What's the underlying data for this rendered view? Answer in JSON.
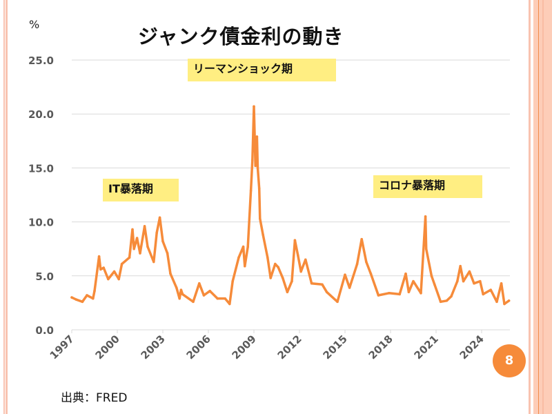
{
  "slide": {
    "title": "ジャンク債金利の動き",
    "unit_label": "%",
    "source": "出典：FRED",
    "page_number": "8",
    "annotations": {
      "it_crash": "IT暴落期",
      "lehman": "リーマンショック期",
      "corona": "コロナ暴落期"
    },
    "colors": {
      "line": "#F68B3A",
      "annotation_bg": "#FFEE82",
      "badge": "#F68B3A",
      "border": "#F9C3B0",
      "grid": "#D9D9D9",
      "tick_text": "#595959"
    }
  },
  "chart_data": {
    "type": "line",
    "title": "ジャンク債金利の動き",
    "xlabel": "",
    "ylabel": "%",
    "xlim": [
      1997,
      2025.9
    ],
    "ylim": [
      0,
      25
    ],
    "grid": true,
    "legend": "none",
    "x_ticks": [
      "1997",
      "2000",
      "2003",
      "2006",
      "2009",
      "2012",
      "2015",
      "2018",
      "2021",
      "2024"
    ],
    "y_ticks": [
      "0.0",
      "5.0",
      "10.0",
      "15.0",
      "20.0",
      "25.0"
    ],
    "annotations": [
      "IT暴落期",
      "リーマンショック期",
      "コロナ暴落期"
    ],
    "series": [
      {
        "name": "ジャンク債金利",
        "x": [
          1997.0,
          1997.3,
          1997.7,
          1998.0,
          1998.4,
          1998.5,
          1998.8,
          1998.9,
          1999.1,
          1999.4,
          1999.8,
          2000.1,
          2000.3,
          2000.8,
          2001.0,
          2001.1,
          2001.3,
          2001.5,
          2001.8,
          2002.0,
          2002.4,
          2002.6,
          2002.8,
          2003.0,
          2003.3,
          2003.5,
          2003.9,
          2004.1,
          2004.2,
          2004.3,
          2005.0,
          2005.4,
          2005.7,
          2006.1,
          2006.6,
          2007.1,
          2007.4,
          2007.6,
          2008.0,
          2008.3,
          2008.4,
          2008.6,
          2008.8,
          2008.9,
          2009.0,
          2009.1,
          2009.2,
          2009.25,
          2009.35,
          2009.4,
          2009.6,
          2009.9,
          2010.1,
          2010.4,
          2010.6,
          2010.9,
          2011.2,
          2011.5,
          2011.7,
          2011.9,
          2012.1,
          2012.4,
          2012.8,
          2013.5,
          2013.8,
          2014.5,
          2015.0,
          2015.3,
          2015.8,
          2016.1,
          2016.4,
          2016.7,
          2017.2,
          2017.9,
          2018.6,
          2019.0,
          2019.2,
          2019.5,
          2020.0,
          2020.3,
          2020.35,
          2020.7,
          2020.9,
          2021.3,
          2021.7,
          2022.0,
          2022.4,
          2022.6,
          2022.8,
          2023.2,
          2023.5,
          2023.9,
          2024.1,
          2024.6,
          2025.0,
          2025.3,
          2025.5,
          2025.8
        ],
        "values": [
          3.0,
          2.8,
          2.6,
          3.2,
          2.9,
          3.6,
          6.8,
          5.6,
          5.75,
          4.7,
          5.4,
          4.7,
          6.1,
          6.7,
          9.3,
          7.5,
          8.5,
          7.1,
          9.6,
          7.7,
          6.3,
          9.0,
          10.4,
          8.2,
          7.1,
          5.2,
          3.9,
          2.9,
          3.7,
          3.3,
          2.6,
          4.3,
          3.2,
          3.6,
          2.9,
          2.9,
          2.4,
          4.5,
          6.7,
          7.7,
          5.9,
          7.7,
          12.9,
          15.7,
          20.7,
          15.2,
          17.9,
          15.0,
          13.1,
          10.3,
          8.8,
          6.7,
          4.8,
          6.1,
          5.8,
          4.8,
          3.5,
          4.5,
          8.3,
          6.9,
          5.4,
          6.5,
          4.3,
          4.2,
          3.5,
          2.6,
          5.1,
          3.9,
          6.1,
          8.4,
          6.3,
          5.2,
          3.2,
          3.4,
          3.3,
          5.2,
          3.5,
          4.5,
          3.4,
          10.5,
          7.5,
          5.0,
          4.2,
          2.6,
          2.7,
          3.1,
          4.5,
          5.9,
          4.5,
          5.4,
          4.3,
          4.5,
          3.3,
          3.7,
          2.6,
          4.3,
          2.4,
          2.7
        ]
      }
    ]
  }
}
